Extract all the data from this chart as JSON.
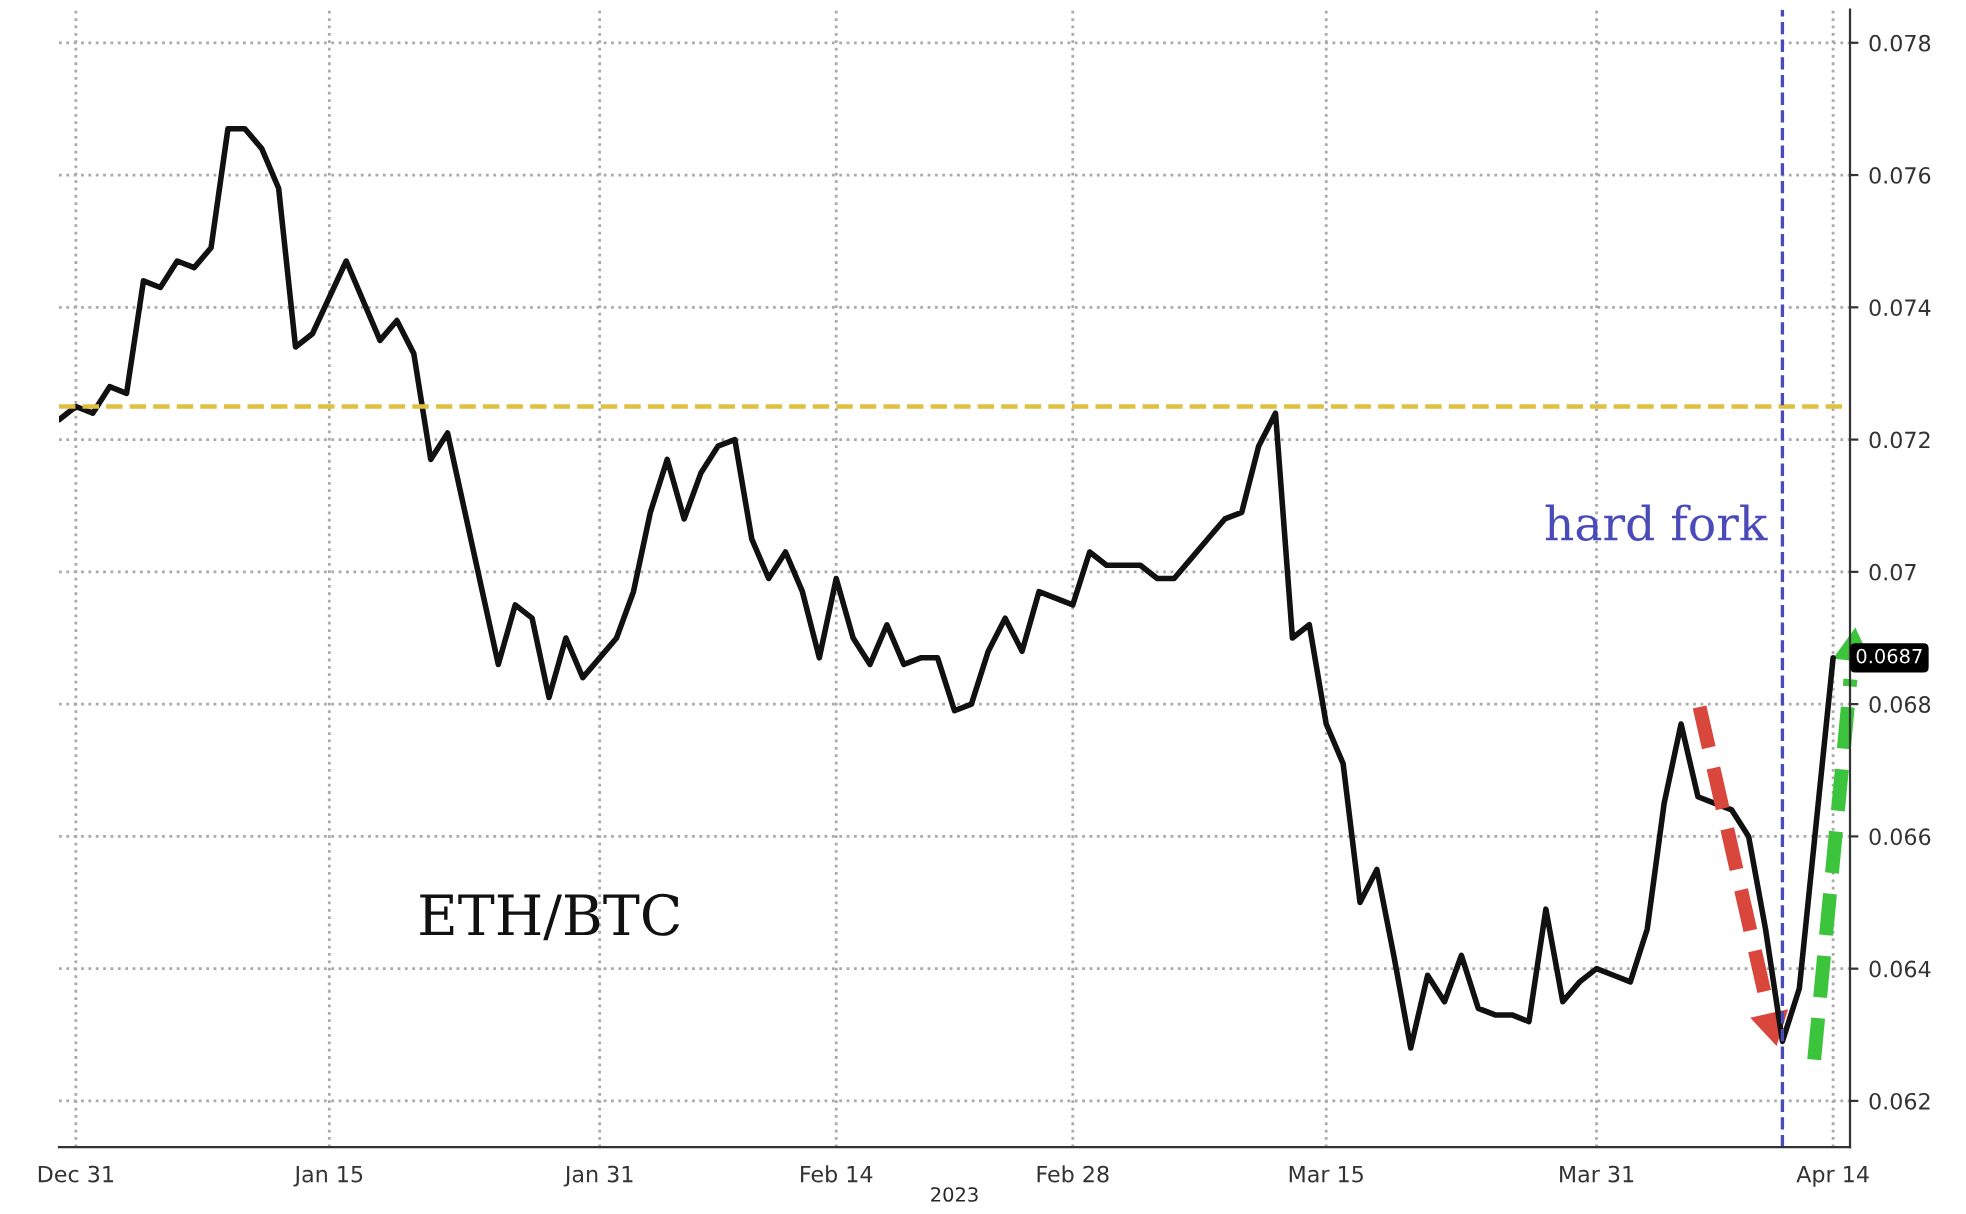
{
  "chart_data": {
    "type": "line",
    "xlabel": "2023",
    "x": [
      "2022-12-30",
      "2022-12-31",
      "2023-01-01",
      "2023-01-02",
      "2023-01-03",
      "2023-01-04",
      "2023-01-05",
      "2023-01-06",
      "2023-01-07",
      "2023-01-08",
      "2023-01-09",
      "2023-01-10",
      "2023-01-11",
      "2023-01-12",
      "2023-01-13",
      "2023-01-14",
      "2023-01-16",
      "2023-01-18",
      "2023-01-19",
      "2023-01-20",
      "2023-01-21",
      "2023-01-22",
      "2023-01-25",
      "2023-01-26",
      "2023-01-27",
      "2023-01-28",
      "2023-01-29",
      "2023-01-30",
      "2023-01-31",
      "2023-02-01",
      "2023-02-02",
      "2023-02-03",
      "2023-02-04",
      "2023-02-05",
      "2023-02-06",
      "2023-02-07",
      "2023-02-08",
      "2023-02-09",
      "2023-02-10",
      "2023-02-11",
      "2023-02-12",
      "2023-02-13",
      "2023-02-14",
      "2023-02-15",
      "2023-02-16",
      "2023-02-17",
      "2023-02-18",
      "2023-02-19",
      "2023-02-20",
      "2023-02-21",
      "2023-02-22",
      "2023-02-23",
      "2023-02-24",
      "2023-02-25",
      "2023-02-26",
      "2023-02-28",
      "2023-03-01",
      "2023-03-02",
      "2023-03-04",
      "2023-03-05",
      "2023-03-06",
      "2023-03-07",
      "2023-03-08",
      "2023-03-09",
      "2023-03-10",
      "2023-03-11",
      "2023-03-12",
      "2023-03-13",
      "2023-03-14",
      "2023-03-15",
      "2023-03-16",
      "2023-03-17",
      "2023-03-18",
      "2023-03-19",
      "2023-03-20",
      "2023-03-21",
      "2023-03-22",
      "2023-03-23",
      "2023-03-24",
      "2023-03-25",
      "2023-03-26",
      "2023-03-27",
      "2023-03-28",
      "2023-03-29",
      "2023-03-30",
      "2023-03-31",
      "2023-04-01",
      "2023-04-02",
      "2023-04-03",
      "2023-04-04",
      "2023-04-05",
      "2023-04-06",
      "2023-04-07",
      "2023-04-08",
      "2023-04-09",
      "2023-04-10",
      "2023-04-11",
      "2023-04-12",
      "2023-04-14"
    ],
    "series": [
      {
        "color": "#111111",
        "values": [
          0.0723,
          0.0725,
          0.0724,
          0.0728,
          0.0727,
          0.0744,
          0.0743,
          0.0747,
          0.0746,
          0.0749,
          0.0767,
          0.0767,
          0.0764,
          0.0758,
          0.0734,
          0.0736,
          0.0747,
          0.0735,
          0.0738,
          0.0733,
          0.0717,
          0.0721,
          0.0686,
          0.0695,
          0.0693,
          0.0681,
          0.069,
          0.0684,
          0.0687,
          0.069,
          0.0697,
          0.0709,
          0.0717,
          0.0708,
          0.0715,
          0.0719,
          0.072,
          0.0705,
          0.0699,
          0.0703,
          0.0697,
          0.0687,
          0.0699,
          0.069,
          0.0686,
          0.0692,
          0.0686,
          0.0687,
          0.0687,
          0.0679,
          0.068,
          0.0688,
          0.0693,
          0.0688,
          0.0697,
          0.0695,
          0.0703,
          0.0701,
          0.0701,
          0.0699,
          0.0699,
          0.0702,
          0.0705,
          0.0708,
          0.0709,
          0.0719,
          0.0724,
          0.069,
          0.0692,
          0.0677,
          0.0671,
          0.065,
          0.0655,
          0.0642,
          0.0628,
          0.0639,
          0.0635,
          0.0642,
          0.0634,
          0.0633,
          0.0633,
          0.0632,
          0.0649,
          0.0635,
          0.0638,
          0.064,
          0.0639,
          0.0638,
          0.0646,
          0.0665,
          0.0677,
          0.0666,
          0.0665,
          0.0664,
          0.066,
          0.0646,
          0.0629,
          0.0637,
          0.0687
        ]
      }
    ],
    "xlim": [
      "2022-12-30",
      "2023-04-15"
    ],
    "xticks": [
      {
        "value": "2022-12-31",
        "label": "Dec 31"
      },
      {
        "value": "2023-01-15",
        "label": "Jan 15"
      },
      {
        "value": "2023-01-31",
        "label": "Jan 31"
      },
      {
        "value": "2023-02-14",
        "label": "Feb 14"
      },
      {
        "value": "2023-02-28",
        "label": "Feb 28"
      },
      {
        "value": "2023-03-15",
        "label": "Mar 15"
      },
      {
        "value": "2023-03-31",
        "label": "Mar 31"
      },
      {
        "value": "2023-04-14",
        "label": "Apr 14"
      }
    ],
    "ylim": [
      0.0613,
      0.0785
    ],
    "yticks": [
      0.062,
      0.064,
      0.066,
      0.068,
      0.07,
      0.072,
      0.074,
      0.076,
      0.078
    ],
    "ref_lines": [
      {
        "axis": "y",
        "value": 0.0725,
        "color": "#e0c040",
        "line_style": "dashed"
      },
      {
        "axis": "x",
        "value": "2023-04-11",
        "label": "hard fork",
        "color": "#4a4ab8",
        "line_style": "dashed"
      }
    ],
    "annotations": [
      "ETH/BTC",
      {
        "text": "0.0687",
        "x": "2023-04-14",
        "y": 0.0687
      }
    ],
    "grid": true,
    "legend": false,
    "marker": "none",
    "line_style": "solid"
  }
}
